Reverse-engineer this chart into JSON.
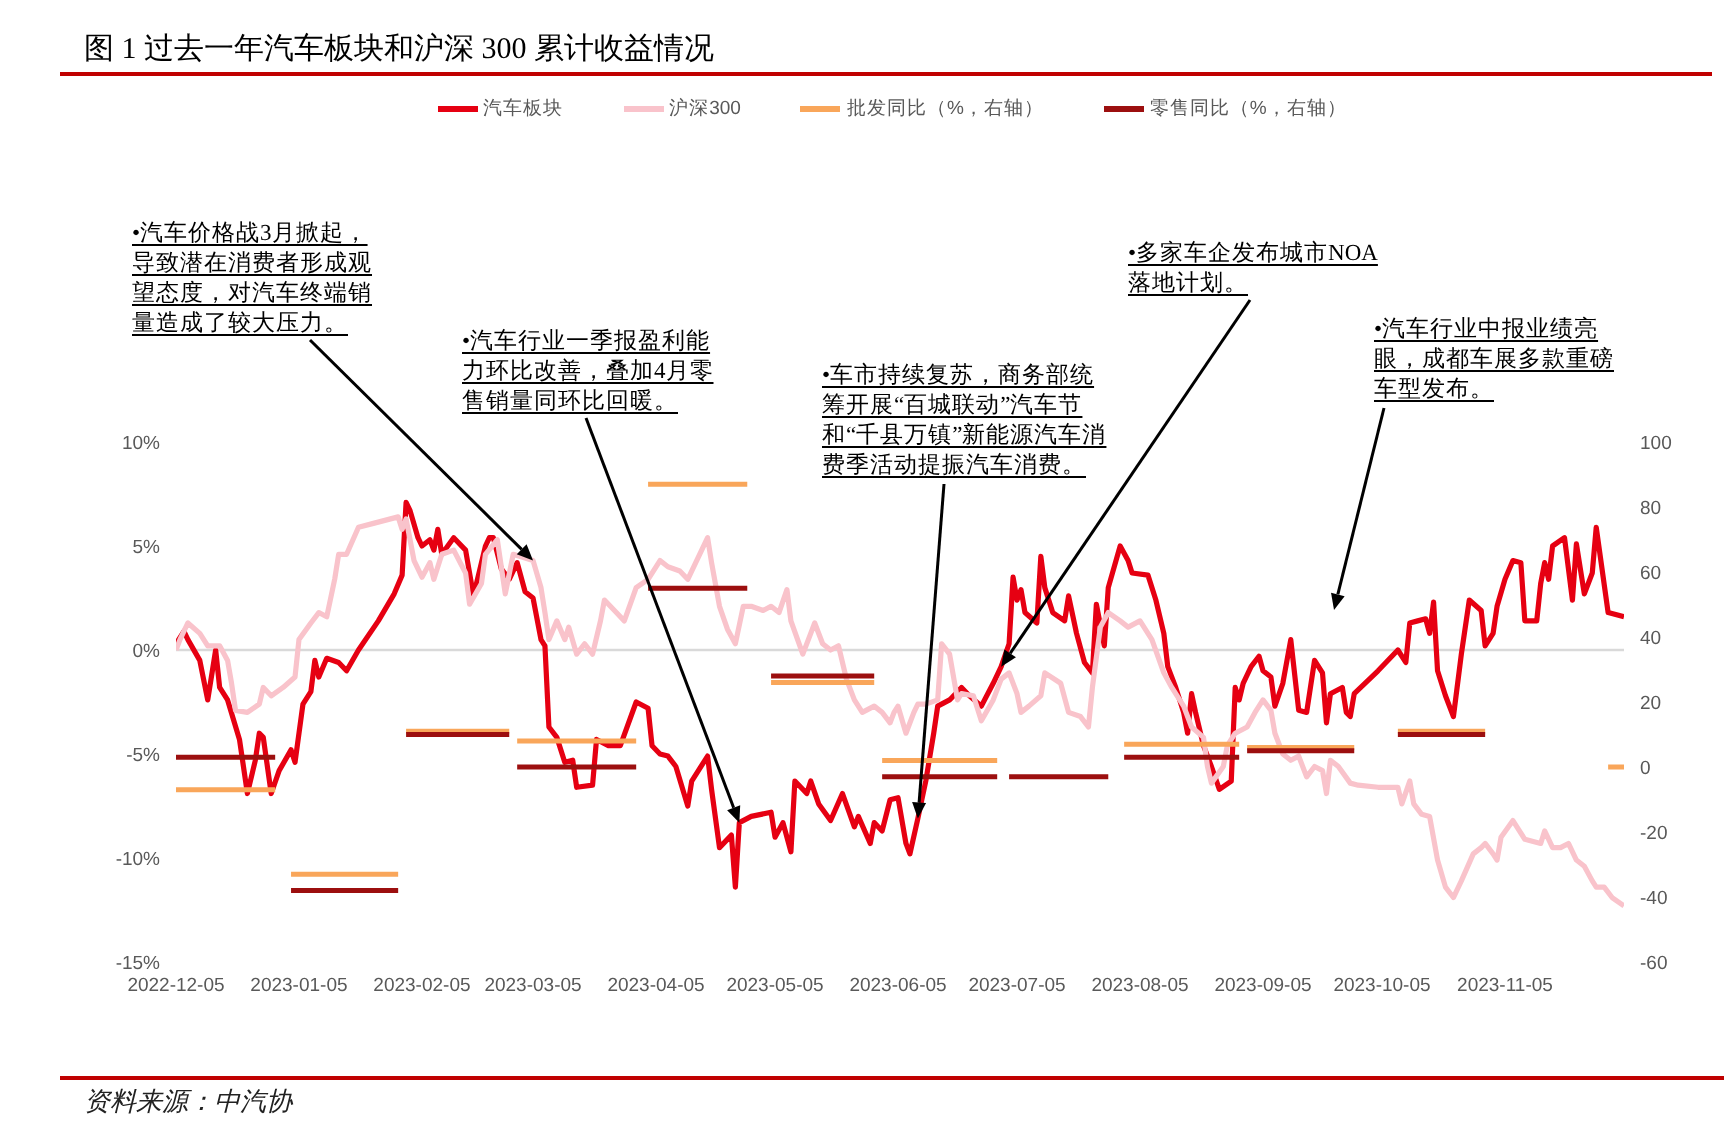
{
  "chart_data": {
    "type": "line",
    "title": "图 1 过去一年汽车板块和沪深 300 累计收益情况",
    "legend": "top",
    "xlim": [
      "2022-12-05",
      "2023-12-05"
    ],
    "xticks": [
      "2022-12-05",
      "2023-01-05",
      "2023-02-05",
      "2023-03-05",
      "2023-04-05",
      "2023-05-05",
      "2023-06-05",
      "2023-07-05",
      "2023-08-05",
      "2023-09-05",
      "2023-10-05",
      "2023-11-05"
    ],
    "ylim": [
      -15,
      10
    ],
    "yticks": [
      {
        "value": -15,
        "label": "-15%"
      },
      {
        "value": -10,
        "label": "-10%"
      },
      {
        "value": -5,
        "label": "-5%"
      },
      {
        "value": 0,
        "label": "0%"
      },
      {
        "value": 5,
        "label": "5%"
      },
      {
        "value": 10,
        "label": "10%"
      }
    ],
    "y2lim": [
      -60,
      100
    ],
    "y2ticks": [
      -60,
      -40,
      -20,
      0,
      20,
      40,
      60,
      80,
      100
    ],
    "ref_lines": [
      {
        "axis": "y",
        "value": 0,
        "color": "#d9d9d9"
      }
    ],
    "series": [
      {
        "name": "汽车板块",
        "color": "#e60012",
        "x": [
          "2022-12-05",
          "2022-12-07",
          "2022-12-08",
          "2022-12-11",
          "2022-12-13",
          "2022-12-15",
          "2022-12-16",
          "2022-12-18",
          "2022-12-21",
          "2022-12-23",
          "2022-12-25",
          "2022-12-26",
          "2022-12-27",
          "2022-12-29",
          "2022-12-31",
          "2023-01-03",
          "2023-01-04",
          "2023-01-06",
          "2023-01-08",
          "2023-01-09",
          "2023-01-10",
          "2023-01-12",
          "2023-01-15",
          "2023-01-17",
          "2023-01-20",
          "2023-01-25",
          "2023-01-29",
          "2023-01-31",
          "2023-02-01",
          "2023-02-02",
          "2023-02-04",
          "2023-02-05",
          "2023-02-07",
          "2023-02-08",
          "2023-02-09",
          "2023-02-10",
          "2023-02-13",
          "2023-02-16",
          "2023-02-18",
          "2023-02-21",
          "2023-02-22",
          "2023-02-23",
          "2023-02-25",
          "2023-02-27",
          "2023-03-01",
          "2023-03-03",
          "2023-03-05",
          "2023-03-07",
          "2023-03-08",
          "2023-03-09",
          "2023-03-11",
          "2023-03-13",
          "2023-03-15",
          "2023-03-16",
          "2023-03-20",
          "2023-03-21",
          "2023-03-24",
          "2023-03-27",
          "2023-03-31",
          "2023-04-03",
          "2023-04-04",
          "2023-04-06",
          "2023-04-08",
          "2023-04-10",
          "2023-04-13",
          "2023-04-14",
          "2023-04-18",
          "2023-04-19",
          "2023-04-21",
          "2023-04-24",
          "2023-04-25",
          "2023-04-26",
          "2023-04-29",
          "2023-05-04",
          "2023-05-05",
          "2023-05-07",
          "2023-05-09",
          "2023-05-10",
          "2023-05-13",
          "2023-05-14",
          "2023-05-16",
          "2023-05-19",
          "2023-05-22",
          "2023-05-25",
          "2023-05-26",
          "2023-05-29",
          "2023-05-30",
          "2023-06-01",
          "2023-06-03",
          "2023-06-05",
          "2023-06-07",
          "2023-06-08",
          "2023-06-10",
          "2023-06-12",
          "2023-06-14",
          "2023-06-15",
          "2023-06-18",
          "2023-06-21",
          "2023-06-23",
          "2023-06-26",
          "2023-06-29",
          "2023-07-01",
          "2023-07-03",
          "2023-07-04",
          "2023-07-05",
          "2023-07-06",
          "2023-07-07",
          "2023-07-10",
          "2023-07-11",
          "2023-07-12",
          "2023-07-14",
          "2023-07-17",
          "2023-07-18",
          "2023-07-20",
          "2023-07-22",
          "2023-07-24",
          "2023-07-25",
          "2023-07-27",
          "2023-07-28",
          "2023-07-31",
          "2023-08-02",
          "2023-08-03",
          "2023-08-07",
          "2023-08-09",
          "2023-08-11",
          "2023-08-12",
          "2023-08-14",
          "2023-08-16",
          "2023-08-17",
          "2023-08-18",
          "2023-08-19",
          "2023-08-21",
          "2023-08-23",
          "2023-08-25",
          "2023-08-28",
          "2023-08-29",
          "2023-08-30",
          "2023-08-31",
          "2023-09-02",
          "2023-09-04",
          "2023-09-05",
          "2023-09-07",
          "2023-09-08",
          "2023-09-10",
          "2023-09-12",
          "2023-09-14",
          "2023-09-16",
          "2023-09-18",
          "2023-09-20",
          "2023-09-21",
          "2023-09-22",
          "2023-09-25",
          "2023-09-26",
          "2023-09-27",
          "2023-09-28",
          "2023-10-04",
          "2023-10-09",
          "2023-10-11",
          "2023-10-12",
          "2023-10-14",
          "2023-10-16",
          "2023-10-17",
          "2023-10-18",
          "2023-10-19",
          "2023-10-21",
          "2023-10-23",
          "2023-10-25",
          "2023-10-27",
          "2023-10-30",
          "2023-10-31",
          "2023-11-02",
          "2023-11-03",
          "2023-11-05",
          "2023-11-07",
          "2023-11-09",
          "2023-11-10",
          "2023-11-13",
          "2023-11-14",
          "2023-11-15",
          "2023-11-16",
          "2023-11-17",
          "2023-11-20",
          "2023-11-22",
          "2023-11-23",
          "2023-11-25",
          "2023-11-27",
          "2023-11-28",
          "2023-12-01",
          "2023-12-05"
        ],
        "values": [
          0.3,
          0.9,
          0.5,
          -0.5,
          -2.4,
          0.0,
          -1.8,
          -2.4,
          -4.3,
          -6.9,
          -5.3,
          -4.0,
          -4.2,
          -6.9,
          -5.8,
          -4.8,
          -5.4,
          -2.6,
          -2.0,
          -0.5,
          -1.3,
          -0.4,
          -0.6,
          -1.0,
          0.0,
          1.4,
          2.7,
          3.6,
          7.1,
          6.7,
          5.4,
          5.0,
          5.3,
          4.8,
          5.8,
          4.6,
          5.4,
          4.8,
          2.6,
          5.0,
          5.4,
          5.4,
          3.9,
          3.4,
          4.2,
          2.8,
          2.5,
          0.5,
          0.2,
          -3.7,
          -4.2,
          -5.4,
          -5.3,
          -6.6,
          -6.5,
          -4.3,
          -4.6,
          -4.6,
          -2.5,
          -2.8,
          -4.6,
          -5.0,
          -5.1,
          -5.6,
          -7.5,
          -6.3,
          -5.1,
          -6.7,
          -9.5,
          -8.9,
          -11.4,
          -8.3,
          -8.0,
          -7.8,
          -9.0,
          -8.3,
          -9.7,
          -6.3,
          -6.9,
          -6.3,
          -7.4,
          -8.2,
          -6.9,
          -8.5,
          -8.0,
          -9.3,
          -8.3,
          -8.7,
          -7.2,
          -7.1,
          -9.3,
          -9.8,
          -8.1,
          -6.3,
          -4.0,
          -2.7,
          -2.4,
          -1.8,
          -2.2,
          -2.7,
          -1.6,
          -0.8,
          0.3,
          3.5,
          2.4,
          2.9,
          1.8,
          1.3,
          4.5,
          3.0,
          1.8,
          1.4,
          2.6,
          0.8,
          -0.6,
          -1.1,
          2.2,
          0.2,
          3.0,
          5.0,
          4.3,
          3.7,
          3.6,
          2.4,
          0.8,
          -0.8,
          -1.8,
          -3.0,
          -4.0,
          -2.1,
          -3.0,
          -4.6,
          -5.6,
          -6.7,
          -6.3,
          -1.8,
          -2.4,
          -1.6,
          -0.8,
          -0.3,
          -1.0,
          -1.3,
          -2.7,
          -1.6,
          0.5,
          -2.9,
          -3.0,
          -0.5,
          -1.1,
          -3.5,
          -2.1,
          -1.8,
          -3.0,
          -3.2,
          -2.1,
          -1.0,
          0.0,
          -0.6,
          1.3,
          1.4,
          1.5,
          0.8,
          2.3,
          -1.0,
          -2.2,
          -3.2,
          -0.2,
          2.4,
          1.9,
          0.2,
          0.8,
          2.1,
          3.4,
          4.3,
          4.2,
          1.4,
          1.4,
          3.2,
          4.2,
          3.4,
          5.0,
          5.4,
          2.4,
          5.1,
          2.7,
          3.7,
          5.9,
          1.8,
          1.6
        ]
      },
      {
        "name": "沪深300",
        "color": "#f9c3cb",
        "x": [
          "2022-12-05",
          "2022-12-06",
          "2022-12-08",
          "2022-12-11",
          "2022-12-13",
          "2022-12-16",
          "2022-12-18",
          "2022-12-19",
          "2022-12-20",
          "2022-12-23",
          "2022-12-26",
          "2022-12-27",
          "2022-12-29",
          "2023-01-01",
          "2023-01-04",
          "2023-01-05",
          "2023-01-08",
          "2023-01-10",
          "2023-01-12",
          "2023-01-14",
          "2023-01-15",
          "2023-01-17",
          "2023-01-20",
          "2023-01-24",
          "2023-01-30",
          "2023-01-31",
          "2023-02-01",
          "2023-02-03",
          "2023-02-05",
          "2023-02-07",
          "2023-02-08",
          "2023-02-10",
          "2023-02-13",
          "2023-02-16",
          "2023-02-17",
          "2023-02-20",
          "2023-02-21",
          "2023-02-24",
          "2023-02-26",
          "2023-02-28",
          "2023-03-05",
          "2023-03-07",
          "2023-03-08",
          "2023-03-09",
          "2023-03-11",
          "2023-03-13",
          "2023-03-14",
          "2023-03-16",
          "2023-03-18",
          "2023-03-20",
          "2023-03-22",
          "2023-03-23",
          "2023-03-26",
          "2023-03-28",
          "2023-03-31",
          "2023-04-03",
          "2023-04-06",
          "2023-04-08",
          "2023-04-11",
          "2023-04-13",
          "2023-04-16",
          "2023-04-18",
          "2023-04-19",
          "2023-04-21",
          "2023-04-23",
          "2023-04-25",
          "2023-04-27",
          "2023-04-29",
          "2023-05-02",
          "2023-05-04",
          "2023-05-06",
          "2023-05-08",
          "2023-05-09",
          "2023-05-12",
          "2023-05-14",
          "2023-05-15",
          "2023-05-17",
          "2023-05-19",
          "2023-05-21",
          "2023-05-23",
          "2023-05-25",
          "2023-05-27",
          "2023-05-30",
          "2023-06-01",
          "2023-06-03",
          "2023-06-04",
          "2023-06-05",
          "2023-06-07",
          "2023-06-09",
          "2023-06-10",
          "2023-06-12",
          "2023-06-15",
          "2023-06-16",
          "2023-06-18",
          "2023-06-20",
          "2023-06-21",
          "2023-06-24",
          "2023-06-26",
          "2023-06-29",
          "2023-07-01",
          "2023-07-03",
          "2023-07-05",
          "2023-07-06",
          "2023-07-08",
          "2023-07-11",
          "2023-07-12",
          "2023-07-16",
          "2023-07-18",
          "2023-07-21",
          "2023-07-23",
          "2023-07-24",
          "2023-07-26",
          "2023-07-28",
          "2023-07-31",
          "2023-08-02",
          "2023-08-05",
          "2023-08-08",
          "2023-08-11",
          "2023-08-13",
          "2023-08-16",
          "2023-08-18",
          "2023-08-21",
          "2023-08-22",
          "2023-08-23",
          "2023-08-26",
          "2023-08-27",
          "2023-08-29",
          "2023-09-01",
          "2023-09-03",
          "2023-09-05",
          "2023-09-07",
          "2023-09-08",
          "2023-09-10",
          "2023-09-12",
          "2023-09-14",
          "2023-09-16",
          "2023-09-18",
          "2023-09-20",
          "2023-09-21",
          "2023-09-22",
          "2023-09-24",
          "2023-09-27",
          "2023-09-29",
          "2023-10-04",
          "2023-10-09",
          "2023-10-10",
          "2023-10-12",
          "2023-10-13",
          "2023-10-15",
          "2023-10-17",
          "2023-10-19",
          "2023-10-21",
          "2023-10-23",
          "2023-10-25",
          "2023-10-28",
          "2023-10-30",
          "2023-10-31",
          "2023-11-02",
          "2023-11-03",
          "2023-11-04",
          "2023-11-07",
          "2023-11-08",
          "2023-11-10",
          "2023-11-14",
          "2023-11-15",
          "2023-11-17",
          "2023-11-19",
          "2023-11-21",
          "2023-11-23",
          "2023-11-25",
          "2023-11-27",
          "2023-11-28",
          "2023-11-30",
          "2023-12-02",
          "2023-12-05"
        ],
        "values": [
          0.0,
          0.5,
          1.3,
          0.8,
          0.2,
          0.2,
          -0.5,
          -1.6,
          -2.9,
          -3.0,
          -2.6,
          -1.8,
          -2.2,
          -1.8,
          -1.3,
          0.5,
          1.3,
          1.8,
          1.6,
          3.4,
          4.6,
          4.6,
          5.9,
          6.1,
          6.4,
          5.8,
          6.3,
          4.3,
          3.5,
          4.2,
          3.4,
          4.6,
          4.8,
          3.7,
          2.2,
          3.2,
          4.6,
          5.3,
          2.7,
          4.6,
          4.3,
          3.0,
          1.8,
          0.5,
          1.4,
          0.5,
          1.1,
          -0.2,
          0.3,
          -0.2,
          1.4,
          2.4,
          1.8,
          1.4,
          3.0,
          3.4,
          4.3,
          4.0,
          3.8,
          3.4,
          4.6,
          5.4,
          4.2,
          2.1,
          1.0,
          0.3,
          2.1,
          2.1,
          1.9,
          2.1,
          1.8,
          2.9,
          1.4,
          -0.2,
          0.8,
          1.3,
          0.3,
          0.0,
          0.2,
          -1.4,
          -2.4,
          -3.0,
          -2.7,
          -3.0,
          -3.5,
          -3.0,
          -2.7,
          -4.0,
          -3.0,
          -2.6,
          -2.6,
          -2.4,
          0.3,
          -0.2,
          -2.4,
          -2.1,
          -2.2,
          -3.4,
          -2.4,
          -1.4,
          -1.1,
          -2.1,
          -3.0,
          -2.7,
          -2.2,
          -1.1,
          -1.6,
          -3.0,
          -3.2,
          -3.7,
          -1.8,
          1.1,
          1.8,
          1.4,
          1.1,
          1.4,
          0.5,
          -1.1,
          -1.8,
          -2.7,
          -3.7,
          -4.2,
          -5.6,
          -6.4,
          -5.6,
          -4.6,
          -4.0,
          -3.7,
          -3.0,
          -2.4,
          -2.9,
          -4.0,
          -5.0,
          -5.3,
          -5.1,
          -6.1,
          -5.6,
          -5.8,
          -6.9,
          -5.3,
          -5.6,
          -6.4,
          -6.5,
          -6.6,
          -6.6,
          -7.4,
          -6.3,
          -7.4,
          -7.9,
          -8.0,
          -10.1,
          -11.4,
          -11.9,
          -11.1,
          -9.8,
          -9.5,
          -9.3,
          -9.8,
          -10.1,
          -9.0,
          -8.2,
          -8.5,
          -9.1,
          -9.3,
          -8.7,
          -9.5,
          -9.5,
          -9.3,
          -10.1,
          -10.4,
          -11.1,
          -11.4,
          -11.4,
          -11.9,
          -12.3
        ]
      },
      {
        "name": "批发同比（%，右轴）",
        "color": "#f9a65a",
        "axis": "y2",
        "x": [
          "2022-12-05",
          "2022-12-30",
          "2023-01-01",
          "2023-01-03",
          "2023-01-30",
          "2023-01-31",
          "2023-02-01",
          "2023-02-27",
          "2023-02-28",
          "2023-03-01",
          "2023-03-31",
          "2023-04-01",
          "2023-04-03",
          "2023-04-28",
          "2023-04-30",
          "2023-05-04",
          "2023-05-30",
          "2023-05-31",
          "2023-06-01",
          "2023-06-30",
          "2023-07-15",
          "2023-08-01",
          "2023-08-30",
          "2023-08-31",
          "2023-09-01",
          "2023-09-28",
          "2023-10-01",
          "2023-10-09",
          "2023-10-31",
          "2023-11-15",
          "2023-12-01",
          "2023-12-05"
        ],
        "values": [
          -7,
          -7,
          null,
          -33,
          -33,
          null,
          11,
          11,
          null,
          8,
          8,
          null,
          87,
          87,
          null,
          26,
          26,
          null,
          2,
          2,
          null,
          7,
          7,
          null,
          6,
          6,
          null,
          11,
          11,
          null,
          0,
          0
        ]
      },
      {
        "name": "零售同比（%，右轴）",
        "color": "#9c0f0f",
        "axis": "y2",
        "x": [
          "2022-12-05",
          "2022-12-30",
          "2023-01-01",
          "2023-01-03",
          "2023-01-30",
          "2023-01-31",
          "2023-02-01",
          "2023-02-27",
          "2023-02-28",
          "2023-03-01",
          "2023-03-31",
          "2023-04-01",
          "2023-04-03",
          "2023-04-28",
          "2023-04-30",
          "2023-05-04",
          "2023-05-30",
          "2023-05-31",
          "2023-06-01",
          "2023-06-30",
          "2023-07-01",
          "2023-07-03",
          "2023-07-28",
          "2023-07-30",
          "2023-08-01",
          "2023-08-30",
          "2023-08-31",
          "2023-09-01",
          "2023-09-28",
          "2023-10-01",
          "2023-10-09",
          "2023-10-31"
        ],
        "values": [
          3,
          3,
          null,
          -38,
          -38,
          null,
          10,
          10,
          null,
          0,
          0,
          null,
          55,
          55,
          null,
          28,
          28,
          null,
          -3,
          -3,
          null,
          -3,
          -3,
          null,
          3,
          3,
          null,
          5,
          5,
          null,
          10,
          10
        ]
      }
    ],
    "annotations": [
      {
        "text": "•汽车价格战3月掀起，导致潜在消费者形成观望态度，对汽车终端销量造成了较大压力。",
        "x": "2023-03-05",
        "y": 4.3
      },
      {
        "text": "•汽车行业一季报盈利能力环比改善，叠加4月零售销量同环比回暖。",
        "x": "2023-04-26",
        "y": -8.3
      },
      {
        "text": "•车市持续复苏，商务部统筹开展“百城联动”汽车节和“千县万镇”新能源汽车消费季活动提振汽车消费。",
        "x": "2023-06-10",
        "y": -8.1
      },
      {
        "text": "•多家车企发布城市NOA落地计划。",
        "x": "2023-07-01",
        "y": -0.8
      },
      "•汽车行业中报业绩亮眼，成都车展多款重磅车型发布。",
      "资料来源：中汽协"
    ]
  }
}
